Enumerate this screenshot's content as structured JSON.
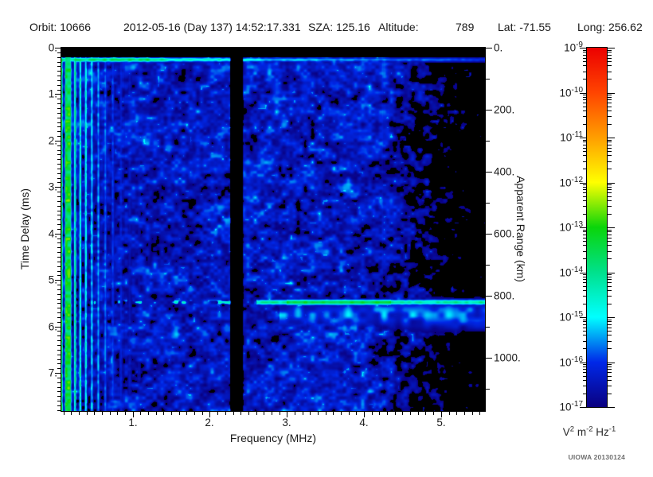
{
  "header": {
    "orbit_label": "Orbit:",
    "orbit_value": "10666",
    "datetime": "2012-05-16 (Day 137) 14:52:17.331",
    "sza_label": "SZA:",
    "sza_value": "125.16",
    "altitude_label": "Altitude:",
    "altitude_value": "789",
    "lat_label": "Lat:",
    "lat_value": "-71.55",
    "long_label": "Long:",
    "long_value": "256.62"
  },
  "credit": "UIOWA 20130124",
  "chart_data": {
    "type": "heatmap",
    "description": "Radar sounder ionogram: received spectral density vs frequency and time delay",
    "x_axis": {
      "title": "Frequency (MHz)",
      "range_mhz": [
        0.073,
        5.57
      ],
      "major_ticks": [
        {
          "v": 1,
          "label": "1."
        },
        {
          "v": 2,
          "label": "2."
        },
        {
          "v": 3,
          "label": "3."
        },
        {
          "v": 4,
          "label": "4."
        },
        {
          "v": 5,
          "label": "5."
        }
      ],
      "minor_step_mhz": 0.1
    },
    "y_axis": {
      "title": "Time Delay (ms)",
      "range_ms": [
        0,
        7.82
      ],
      "major_ticks": [
        {
          "v": 0,
          "label": "0."
        },
        {
          "v": 1,
          "label": "1."
        },
        {
          "v": 2,
          "label": "2."
        },
        {
          "v": 3,
          "label": "3."
        },
        {
          "v": 4,
          "label": "4."
        },
        {
          "v": 5,
          "label": "5."
        },
        {
          "v": 6,
          "label": "6."
        },
        {
          "v": 7,
          "label": "7."
        }
      ],
      "minor_step_ms": 0.1
    },
    "right_axis": {
      "title": "Apparent Range (km)",
      "range_km": [
        0,
        1173
      ],
      "major_ticks": [
        {
          "v": 0,
          "label": "0."
        },
        {
          "v": 200,
          "label": "200."
        },
        {
          "v": 400,
          "label": "400."
        },
        {
          "v": 600,
          "label": "600."
        },
        {
          "v": 800,
          "label": "800."
        },
        {
          "v": 1000,
          "label": "1000."
        }
      ],
      "minor_step_km": 100
    },
    "colorbar": {
      "scale": "log10",
      "exponent_range": [
        -17,
        -9
      ],
      "major_ticks": [
        {
          "exp": -9,
          "mantissa": "10",
          "label_exp": "-9"
        },
        {
          "exp": -10,
          "mantissa": "10",
          "label_exp": "-10"
        },
        {
          "exp": -11,
          "mantissa": "10",
          "label_exp": "-11"
        },
        {
          "exp": -12,
          "mantissa": "10",
          "label_exp": "-12"
        },
        {
          "exp": -13,
          "mantissa": "10",
          "label_exp": "-13"
        },
        {
          "exp": -14,
          "mantissa": "10",
          "label_exp": "-14"
        },
        {
          "exp": -15,
          "mantissa": "10",
          "label_exp": "-15"
        },
        {
          "exp": -16,
          "mantissa": "10",
          "label_exp": "-16"
        },
        {
          "exp": -17,
          "mantissa": "10",
          "label_exp": "-17"
        }
      ],
      "units_parts": [
        {
          "b": "V",
          "e": "2"
        },
        {
          "b": " m",
          "e": "-2"
        },
        {
          "b": " Hz",
          "e": "-1"
        }
      ],
      "stops": [
        {
          "exp": -17,
          "color": "#0A0080"
        },
        {
          "exp": -16,
          "color": "#0028E8"
        },
        {
          "exp": -15,
          "color": "#00FFFF"
        },
        {
          "exp": -14,
          "color": "#00E18C"
        },
        {
          "exp": -13,
          "color": "#0AD50A"
        },
        {
          "exp": -12,
          "color": "#FFFF00"
        },
        {
          "exp": -11,
          "color": "#FF9E00"
        },
        {
          "exp": -10,
          "color": "#FF4400"
        },
        {
          "exp": -9,
          "color": "#EC0000"
        }
      ]
    },
    "features": {
      "noise_floor_log10": [
        -17.65,
        -15.1
      ],
      "blanking_band_ms": [
        0,
        0.21
      ],
      "transmit_line": {
        "delay_ms": 0.26,
        "sigma_ms": 0.05,
        "intensity_log10_points": [
          [
            0.1,
            -13.6
          ],
          [
            1.35,
            -13.6
          ],
          [
            1.5,
            -14.5
          ],
          [
            2.3,
            -14.5
          ],
          [
            2.55,
            -15.1
          ],
          [
            5.57,
            -15.9
          ]
        ]
      },
      "resonance_stripes": {
        "freq_range_mhz": [
          0.073,
          1.5
        ],
        "peak_log10": -13.1,
        "decay_mhz": 0.55
      },
      "receiver_gap": {
        "center_mhz": 2.35,
        "half_width_mhz": 0.055,
        "soft_mhz": 0.03
      },
      "surface_echo": {
        "delay_ms": 5.48,
        "apparent_range_km": 820,
        "sigma_ms": 0.06,
        "strong_freq_mhz": [
          3.0,
          4.35
        ],
        "strong_log10": -13.3,
        "weak_freq_mhz": [
          2.6,
          5.57
        ],
        "weak_log10": -14.0,
        "patchy_freq_mhz": [
          0.5,
          2.6
        ],
        "patchy_log10": -14.4,
        "glow_delay_ms": 5.75,
        "glow_log10": -15.3
      },
      "high_freq_fade": {
        "start_mhz": 4.25,
        "log10_per_mhz": 1.15
      }
    }
  }
}
